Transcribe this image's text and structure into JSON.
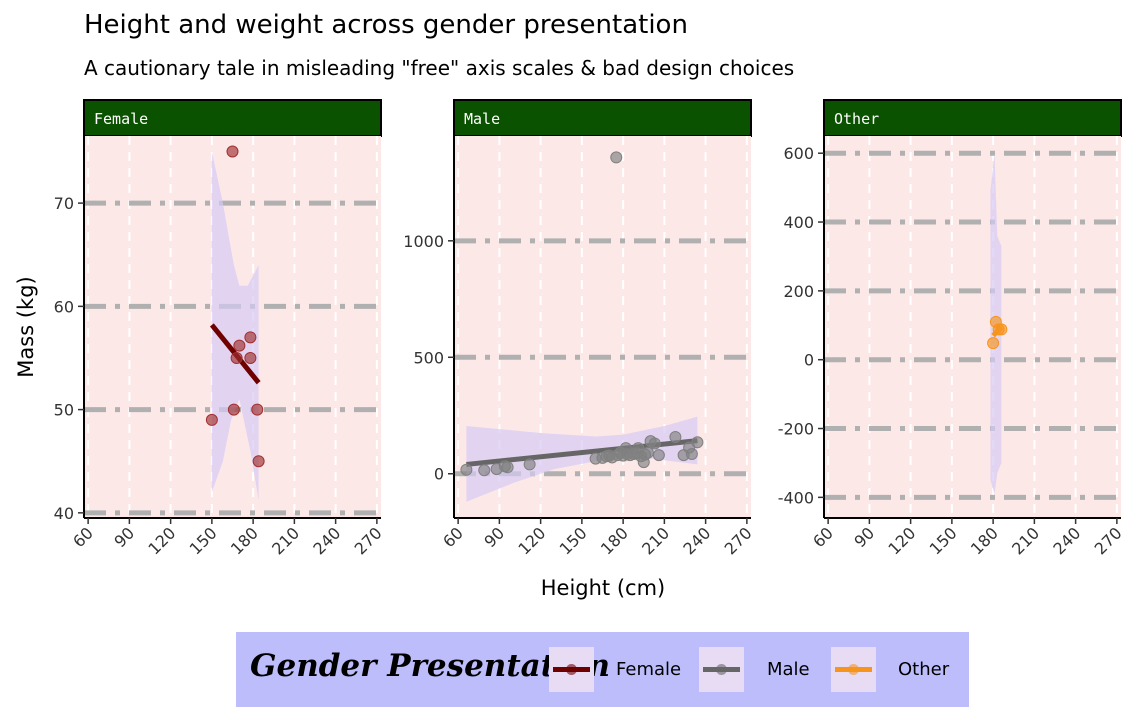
{
  "title": "Height and weight across gender presentation",
  "subtitle": "A cautionary tale in misleading \"free\" axis scales & bad design choices",
  "chart_data": {
    "type": "scatter",
    "xlabel": "Height (cm)",
    "ylabel": "Mass (kg)",
    "x_ticks": [
      60,
      90,
      120,
      150,
      180,
      210,
      240,
      270
    ],
    "xlim": [
      57,
      273
    ],
    "grid": true,
    "legend": {
      "title": "Gender Presentation",
      "position": "bottom",
      "entries": [
        {
          "label": "Female",
          "color": "#6f0000"
        },
        {
          "label": "Male",
          "color": "#666666"
        },
        {
          "label": "Other",
          "color": "#f7941d"
        }
      ]
    },
    "panels": [
      {
        "label": "Female",
        "strip_color": "#0b5200",
        "point_color": "#a03030",
        "line_color": "#6f0000",
        "ylim": [
          39.5,
          76.5
        ],
        "y_ticks": [
          40,
          50,
          60,
          70
        ],
        "points": [
          [
            150,
            49
          ],
          [
            165,
            75
          ],
          [
            166,
            50
          ],
          [
            168,
            55
          ],
          [
            170,
            56.2
          ],
          [
            178,
            57
          ],
          [
            178,
            55
          ],
          [
            183,
            50
          ],
          [
            184,
            45
          ]
        ],
        "trend": [
          [
            150,
            58.2
          ],
          [
            184,
            52.6
          ]
        ],
        "band_upper": [
          [
            150,
            75
          ],
          [
            158,
            70
          ],
          [
            166,
            64
          ],
          [
            170,
            62
          ],
          [
            176,
            62
          ],
          [
            184,
            64
          ]
        ],
        "band_lower": [
          [
            184,
            41.2
          ],
          [
            178,
            46
          ],
          [
            170,
            51
          ],
          [
            164,
            49
          ],
          [
            158,
            45
          ],
          [
            150,
            42
          ]
        ]
      },
      {
        "label": "Male",
        "strip_color": "#0b5200",
        "point_color": "#808080",
        "line_color": "#666666",
        "ylim": [
          -190,
          1450
        ],
        "y_ticks": [
          0,
          500,
          1000
        ],
        "points": [
          [
            66,
            17
          ],
          [
            79,
            15
          ],
          [
            88,
            20
          ],
          [
            94,
            32
          ],
          [
            96,
            28
          ],
          [
            112,
            40
          ],
          [
            160,
            65
          ],
          [
            165,
            68
          ],
          [
            168,
            75
          ],
          [
            170,
            78
          ],
          [
            172,
            70
          ],
          [
            175,
            1358
          ],
          [
            176,
            80
          ],
          [
            178,
            90
          ],
          [
            180,
            78
          ],
          [
            182,
            110
          ],
          [
            183,
            84
          ],
          [
            185,
            80
          ],
          [
            188,
            85
          ],
          [
            190,
            88
          ],
          [
            191,
            110
          ],
          [
            193,
            75
          ],
          [
            195,
            50
          ],
          [
            196,
            82
          ],
          [
            198,
            90
          ],
          [
            200,
            140
          ],
          [
            203,
            130
          ],
          [
            206,
            80
          ],
          [
            218,
            158
          ],
          [
            224,
            80
          ],
          [
            228,
            112
          ],
          [
            230,
            85
          ],
          [
            234,
            135
          ]
        ],
        "trend": [
          [
            66,
            40
          ],
          [
            234,
            142
          ]
        ],
        "band_upper": [
          [
            66,
            205
          ],
          [
            120,
            175
          ],
          [
            160,
            160
          ],
          [
            180,
            168
          ],
          [
            210,
            205
          ],
          [
            234,
            245
          ]
        ],
        "band_lower": [
          [
            234,
            40
          ],
          [
            200,
            65
          ],
          [
            170,
            65
          ],
          [
            130,
            20
          ],
          [
            100,
            -40
          ],
          [
            66,
            -120
          ]
        ]
      },
      {
        "label": "Other",
        "strip_color": "#0b5200",
        "point_color": "#f7941d",
        "line_color": "#f7941d",
        "ylim": [
          -460,
          650
        ],
        "y_ticks": [
          -400,
          -200,
          0,
          200,
          400,
          600
        ],
        "points": [
          [
            180,
            48
          ],
          [
            182,
            110
          ],
          [
            184,
            88
          ],
          [
            186,
            88
          ]
        ],
        "trend": [
          [
            180,
            70
          ],
          [
            186,
            95
          ]
        ],
        "band_upper": [
          [
            178,
            490
          ],
          [
            181,
            600
          ],
          [
            183,
            360
          ],
          [
            186,
            330
          ]
        ],
        "band_lower": [
          [
            186,
            -300
          ],
          [
            183,
            -330
          ],
          [
            181,
            -390
          ],
          [
            178,
            -350
          ]
        ]
      }
    ]
  }
}
